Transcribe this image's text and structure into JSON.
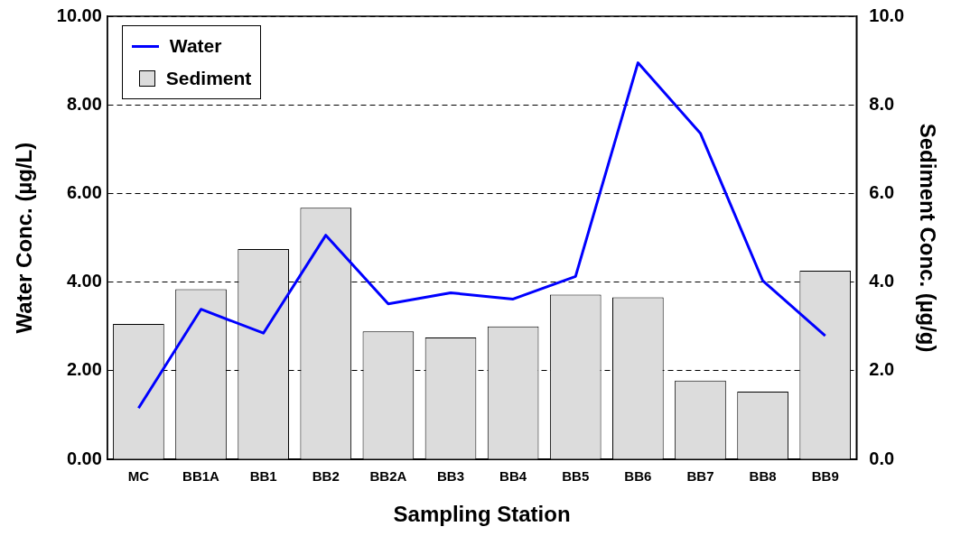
{
  "chart_data": {
    "type": "bar",
    "xlabel": "Sampling Station",
    "ylabel": "Water Conc. (µg/L)",
    "y2label": "Sediment Conc. (µg/g)",
    "categories": [
      "MC",
      "BB1A",
      "BB1",
      "BB2",
      "BB2A",
      "BB3",
      "BB4",
      "BB5",
      "BB6",
      "BB7",
      "BB8",
      "BB9"
    ],
    "series": [
      {
        "name": "Water",
        "type": "line",
        "color": "#0000ff",
        "values": [
          1.16,
          3.39,
          2.85,
          5.06,
          3.51,
          3.76,
          3.62,
          4.13,
          8.95,
          7.36,
          4.03,
          2.79
        ]
      },
      {
        "name": "Sediment",
        "axis": "y2",
        "color": "#dcdcdc",
        "values": [
          3.06,
          3.84,
          4.75,
          5.68,
          2.89,
          2.75,
          3.0,
          3.72,
          3.66,
          1.78,
          1.53,
          4.26
        ]
      }
    ],
    "ylim": [
      0,
      10
    ],
    "yticks": [
      {
        "value": 0,
        "label": "0.00"
      },
      {
        "value": 2,
        "label": "2.00"
      },
      {
        "value": 4,
        "label": "4.00"
      },
      {
        "value": 6,
        "label": "6.00"
      },
      {
        "value": 8,
        "label": "8.00"
      },
      {
        "value": 10,
        "label": "10.00"
      }
    ],
    "y2lim": [
      0,
      10
    ],
    "y2ticks": [
      {
        "value": 0,
        "label": "0.0"
      },
      {
        "value": 2,
        "label": "2.0"
      },
      {
        "value": 4,
        "label": "4.0"
      },
      {
        "value": 6,
        "label": "6.0"
      },
      {
        "value": 8,
        "label": "8.0"
      },
      {
        "value": 10,
        "label": "10.0"
      }
    ],
    "grid": "y",
    "legend": "top left",
    "marker": "none"
  }
}
